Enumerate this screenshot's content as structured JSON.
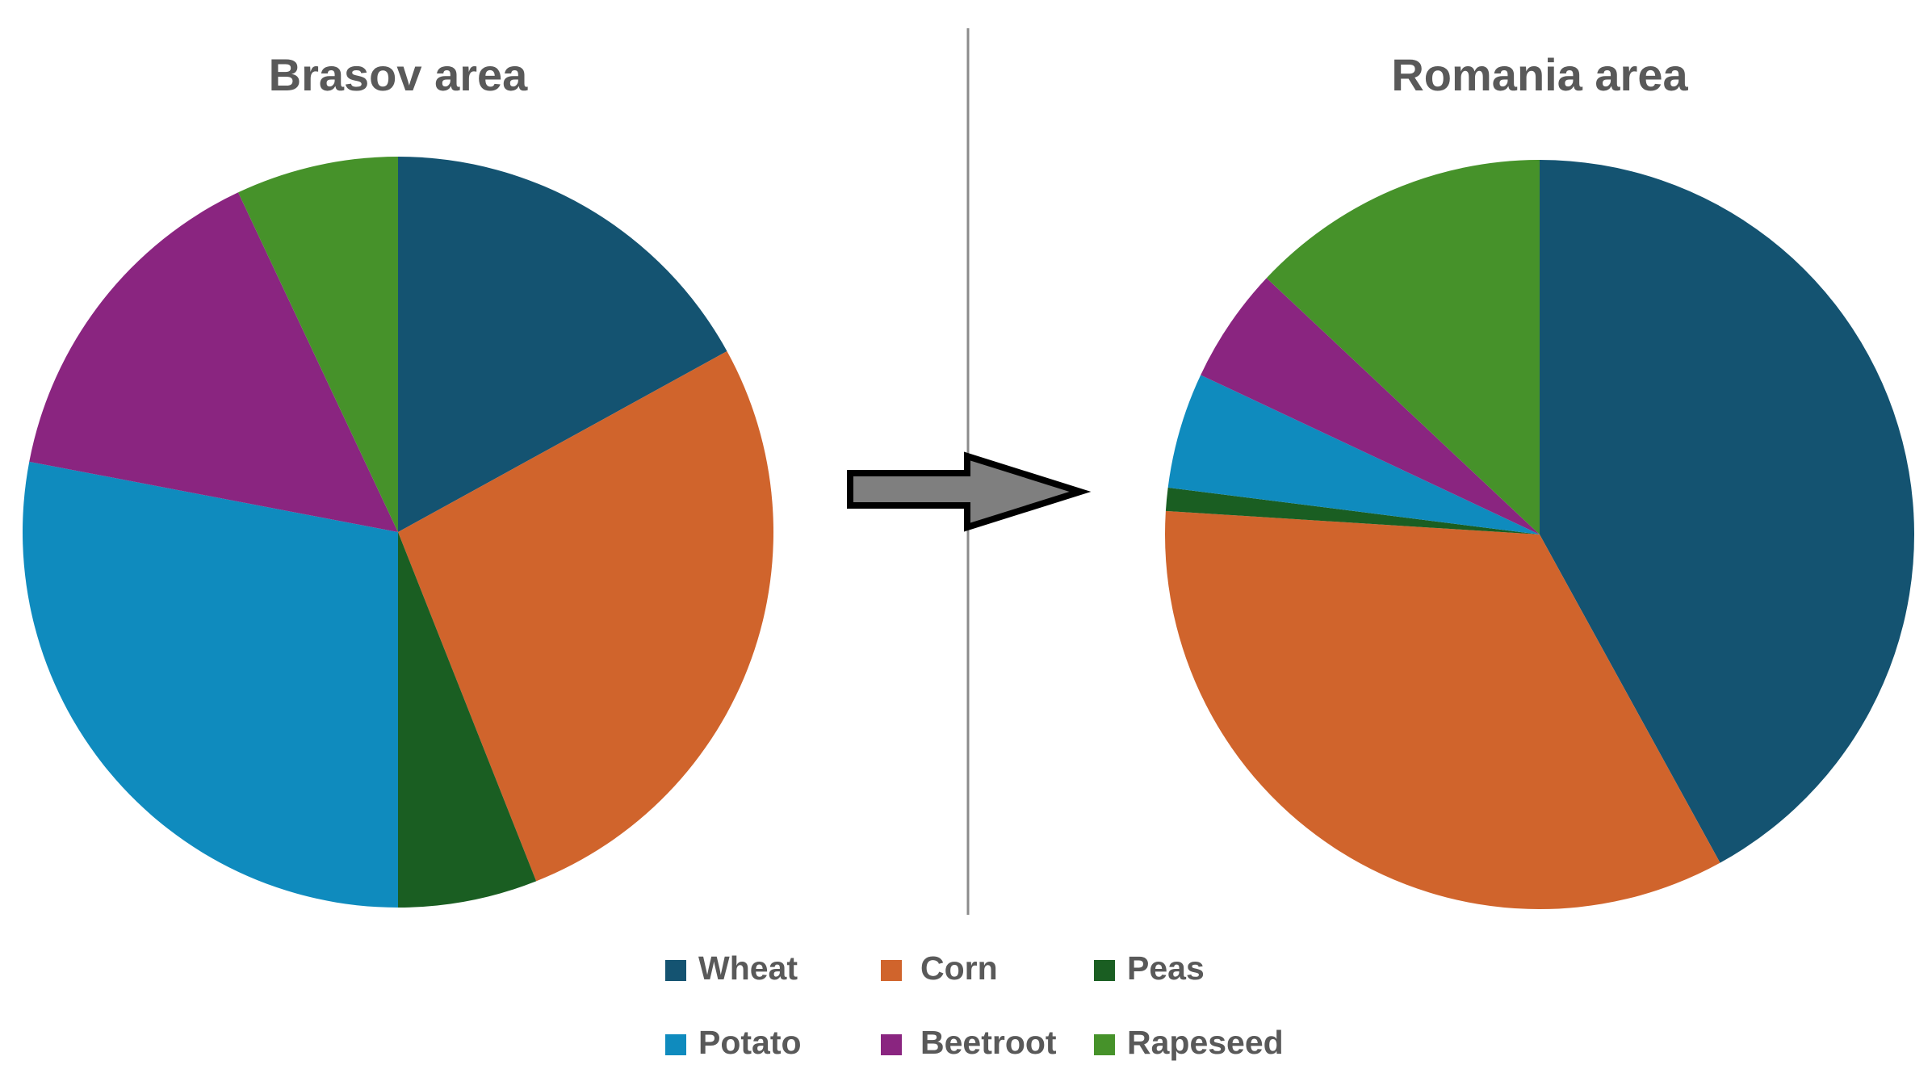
{
  "chart_data": [
    {
      "type": "pie",
      "title": "Brasov area",
      "categories": [
        "Wheat",
        "Corn",
        "Peas",
        "Potato",
        "Beetroot",
        "Rapeseed"
      ],
      "values": [
        17,
        27,
        6,
        28,
        15,
        7
      ],
      "colors": [
        "#145371",
        "#d0642c",
        "#1a5e22",
        "#0f8bbe",
        "#8a2580",
        "#46922a"
      ]
    },
    {
      "type": "pie",
      "title": "Romania area",
      "categories": [
        "Wheat",
        "Corn",
        "Peas",
        "Potato",
        "Beetroot",
        "Rapeseed"
      ],
      "values": [
        42,
        34,
        1,
        5,
        5,
        13
      ],
      "colors": [
        "#145371",
        "#d0642c",
        "#1a5e22",
        "#0f8bbe",
        "#8a2580",
        "#46922a"
      ]
    }
  ]
}
